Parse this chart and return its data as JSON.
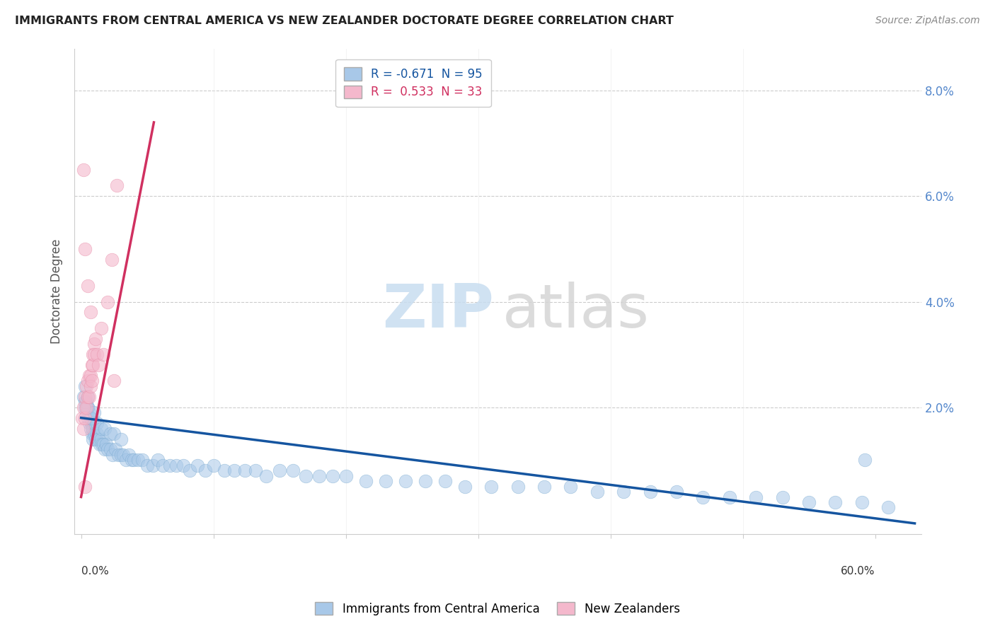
{
  "title": "IMMIGRANTS FROM CENTRAL AMERICA VS NEW ZEALANDER DOCTORATE DEGREE CORRELATION CHART",
  "source": "Source: ZipAtlas.com",
  "ylabel": "Doctorate Degree",
  "y_ticks": [
    0.0,
    0.02,
    0.04,
    0.06,
    0.08
  ],
  "y_tick_labels": [
    "",
    "2.0%",
    "4.0%",
    "6.0%",
    "8.0%"
  ],
  "xlim": [
    -0.005,
    0.635
  ],
  "ylim": [
    -0.004,
    0.088
  ],
  "legend_blue_label": "R = -0.671  N = 95",
  "legend_pink_label": "R =  0.533  N = 33",
  "legend_bottom_blue": "Immigrants from Central America",
  "legend_bottom_pink": "New Zealanders",
  "blue_color": "#a8c8e8",
  "pink_color": "#f4b8cc",
  "blue_edge_color": "#7aaad0",
  "pink_edge_color": "#e890aa",
  "blue_line_color": "#1555a0",
  "pink_line_color": "#d03060",
  "watermark_zip": "ZIP",
  "watermark_atlas": "atlas",
  "blue_line_x": [
    0.0,
    0.63
  ],
  "blue_line_y": [
    0.018,
    -0.002
  ],
  "pink_line_x": [
    0.0,
    0.055
  ],
  "pink_line_y": [
    0.003,
    0.074
  ],
  "blue_scatter_x": [
    0.002,
    0.003,
    0.003,
    0.004,
    0.004,
    0.005,
    0.005,
    0.005,
    0.006,
    0.006,
    0.007,
    0.007,
    0.008,
    0.008,
    0.009,
    0.009,
    0.01,
    0.01,
    0.011,
    0.012,
    0.013,
    0.014,
    0.015,
    0.016,
    0.017,
    0.018,
    0.019,
    0.02,
    0.022,
    0.024,
    0.026,
    0.028,
    0.03,
    0.032,
    0.034,
    0.036,
    0.038,
    0.04,
    0.043,
    0.046,
    0.05,
    0.054,
    0.058,
    0.062,
    0.067,
    0.072,
    0.077,
    0.082,
    0.088,
    0.094,
    0.1,
    0.108,
    0.116,
    0.124,
    0.132,
    0.14,
    0.15,
    0.16,
    0.17,
    0.18,
    0.19,
    0.2,
    0.215,
    0.23,
    0.245,
    0.26,
    0.275,
    0.29,
    0.31,
    0.33,
    0.35,
    0.37,
    0.39,
    0.41,
    0.43,
    0.45,
    0.47,
    0.49,
    0.51,
    0.53,
    0.55,
    0.57,
    0.59,
    0.61,
    0.003,
    0.005,
    0.007,
    0.01,
    0.012,
    0.015,
    0.018,
    0.022,
    0.025,
    0.03,
    0.592
  ],
  "blue_scatter_y": [
    0.022,
    0.02,
    0.024,
    0.019,
    0.021,
    0.018,
    0.02,
    0.022,
    0.017,
    0.019,
    0.016,
    0.018,
    0.017,
    0.015,
    0.016,
    0.014,
    0.015,
    0.017,
    0.014,
    0.015,
    0.014,
    0.013,
    0.014,
    0.013,
    0.013,
    0.012,
    0.013,
    0.012,
    0.012,
    0.011,
    0.012,
    0.011,
    0.011,
    0.011,
    0.01,
    0.011,
    0.01,
    0.01,
    0.01,
    0.01,
    0.009,
    0.009,
    0.01,
    0.009,
    0.009,
    0.009,
    0.009,
    0.008,
    0.009,
    0.008,
    0.009,
    0.008,
    0.008,
    0.008,
    0.008,
    0.007,
    0.008,
    0.008,
    0.007,
    0.007,
    0.007,
    0.007,
    0.006,
    0.006,
    0.006,
    0.006,
    0.006,
    0.005,
    0.005,
    0.005,
    0.005,
    0.005,
    0.004,
    0.004,
    0.004,
    0.004,
    0.003,
    0.003,
    0.003,
    0.003,
    0.002,
    0.002,
    0.002,
    0.001,
    0.021,
    0.02,
    0.018,
    0.019,
    0.017,
    0.016,
    0.016,
    0.015,
    0.015,
    0.014,
    0.01
  ],
  "pink_scatter_x": [
    0.001,
    0.002,
    0.002,
    0.003,
    0.003,
    0.004,
    0.004,
    0.005,
    0.005,
    0.006,
    0.006,
    0.007,
    0.007,
    0.008,
    0.008,
    0.009,
    0.009,
    0.01,
    0.01,
    0.011,
    0.012,
    0.013,
    0.015,
    0.017,
    0.02,
    0.023,
    0.027,
    0.003,
    0.005,
    0.007,
    0.002,
    0.025,
    0.003
  ],
  "pink_scatter_y": [
    0.018,
    0.02,
    0.016,
    0.022,
    0.018,
    0.024,
    0.02,
    0.025,
    0.022,
    0.026,
    0.022,
    0.026,
    0.024,
    0.028,
    0.025,
    0.03,
    0.028,
    0.032,
    0.03,
    0.033,
    0.03,
    0.028,
    0.035,
    0.03,
    0.04,
    0.048,
    0.062,
    0.05,
    0.043,
    0.038,
    0.065,
    0.025,
    0.005
  ]
}
